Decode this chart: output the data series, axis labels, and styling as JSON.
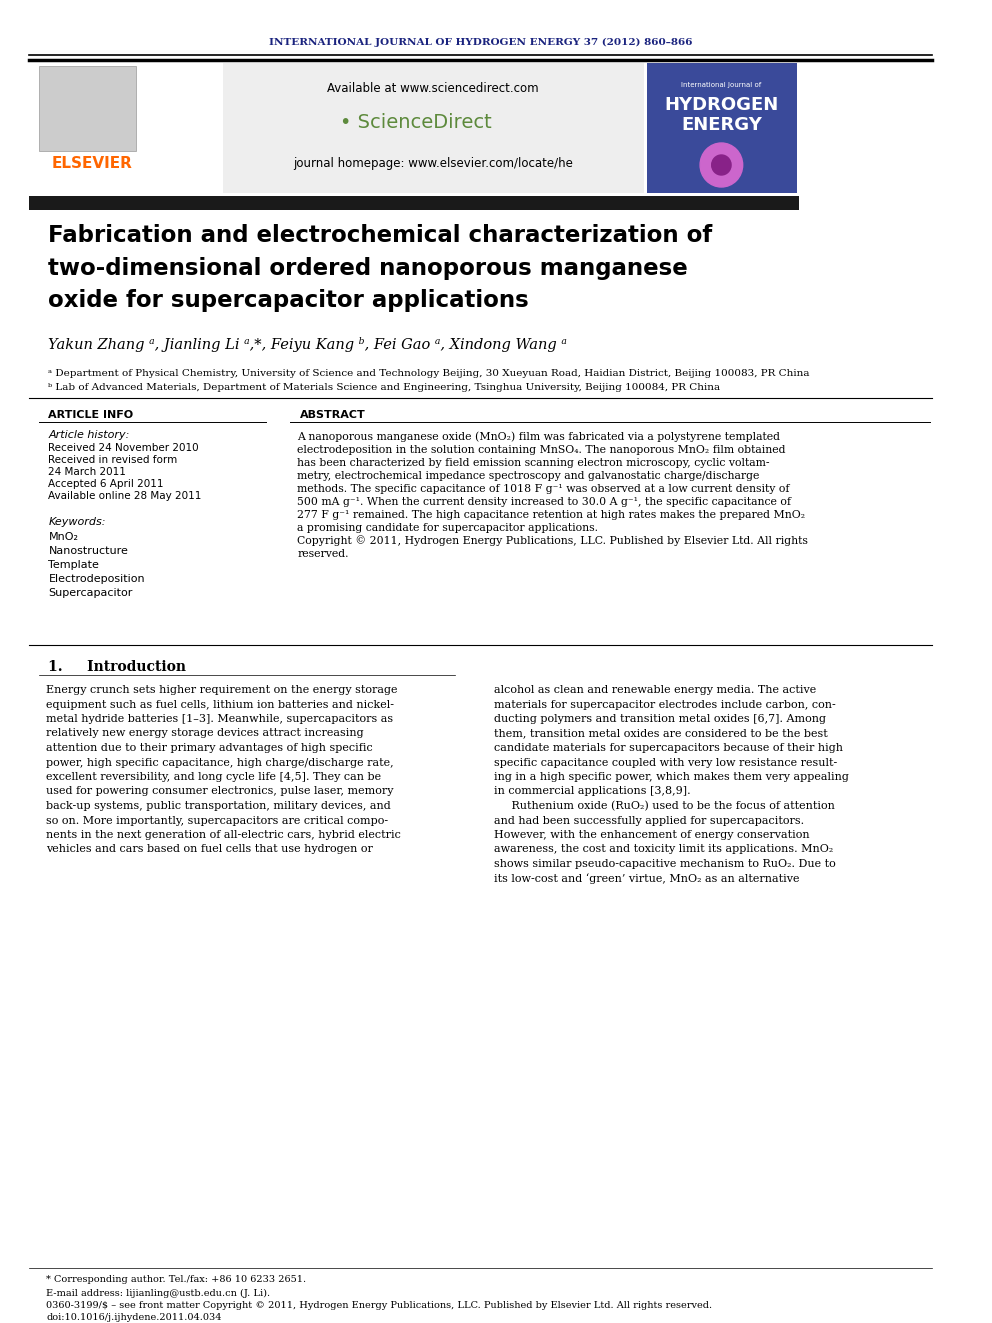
{
  "journal_header": "INTERNATIONAL JOURNAL OF HYDROGEN ENERGY 37 (2012) 860–866",
  "journal_header_color": "#1a237e",
  "elsevier_text": "ELSEVIER",
  "elsevier_color": "#ff6600",
  "available_text": "Available at www.sciencedirect.com",
  "journal_homepage": "journal homepage: www.elsevier.com/locate/he",
  "sciencedirect_text": "ScienceDirect",
  "title_line1": "Fabrication and electrochemical characterization of",
  "title_line2": "two-dimensional ordered nanoporous manganese",
  "title_line3": "oxide for supercapacitor applications",
  "authors": "Yakun Zhang ᵃ, Jianling Li ᵃ,*, Feiyu Kang ᵇ, Fei Gao ᵃ, Xindong Wang ᵃ",
  "affiliation_a": "ᵃ Department of Physical Chemistry, University of Science and Technology Beijing, 30 Xueyuan Road, Haidian District, Beijing 100083, PR China",
  "affiliation_b": "ᵇ Lab of Advanced Materials, Department of Materials Science and Engineering, Tsinghua University, Beijing 100084, PR China",
  "article_info_header": "ARTICLE INFO",
  "abstract_header": "ABSTRACT",
  "article_history": "Article history:",
  "received1": "Received 24 November 2010",
  "received2": "Received in revised form",
  "date2": "24 March 2011",
  "accepted": "Accepted 6 April 2011",
  "available_online": "Available online 28 May 2011",
  "keywords_header": "Keywords:",
  "keywords": [
    "MnO₂",
    "Nanostructure",
    "Template",
    "Electrodeposition",
    "Supercapacitor"
  ],
  "abstract_text": "A nanoporous manganese oxide (MnO₂) film was fabricated via a polystyrene templated electrodeposition in the solution containing MnSO₄. The nanoporous MnO₂ film obtained has been characterized by field emission scanning electron microscopy, cyclic voltammetry, electrochemical impedance spectroscopy and galvanostatic charge/discharge methods. The specific capacitance of 1018 F g⁻¹ was observed at a low current density of 500 mA g⁻¹. When the current density increased to 30.0 A g⁻¹, the specific capacitance of 277 F g⁻¹ remained. The high capacitance retention at high rates makes the prepared MnO₂ a promising candidate for supercapacitor applications.\nCopyright © 2011, Hydrogen Energy Publications, LLC. Published by Elsevier Ltd. All rights reserved.",
  "section_header": "1.     Introduction",
  "intro_text1": "Energy crunch sets higher requirement on the energy storage equipment such as fuel cells, lithium ion batteries and nickel-metal hydride batteries [1–3]. Meanwhile, supercapacitors as relatively new energy storage devices attract increasing attention due to their primary advantages of high specific power, high specific capacitance, high charge/discharge rate, excellent reversibility, and long cycle life [4,5]. They can be used for powering consumer electronics, pulse laser, memory back-up systems, public transportation, military devices, and so on. More importantly, supercapacitors are critical components in the next generation of all-electric cars, hybrid electric vehicles and cars based on fuel cells that use hydrogen or",
  "intro_text2": "alcohol as clean and renewable energy media. The active materials for supercapacitor electrodes include carbon, conducting polymers and transition metal oxides [6,7]. Among them, transition metal oxides are considered to be the best candidate materials for supercapacitors because of their high specific capacitance coupled with very low resistance resulting in a high specific power, which makes them very appealing in commercial applications [3,8,9].\n     Ruthenium oxide (RuO₂) used to be the focus of attention and had been successfully applied for supercapacitors. However, with the enhancement of energy conservation awareness, the cost and toxicity limit its applications. MnO₂ shows similar pseudo-capacitive mechanism to RuO₂. Due to its low-cost and ‘green’ virtue, MnO₂ as an alternative",
  "footnote_star": "* Corresponding author. Tel./fax: +86 10 6233 2651.",
  "footnote_email": "E-mail address: lijianling@ustb.edu.cn (J. Li).",
  "footnote_issn": "0360-3199/$ – see front matter Copyright © 2011, Hydrogen Energy Publications, LLC. Published by Elsevier Ltd. All rights reserved.",
  "footnote_doi": "doi:10.1016/j.ijhydene.2011.04.034",
  "background_color": "#ffffff",
  "text_color": "#000000",
  "header_bg": "#e8e8e8",
  "title_bar_color": "#1a1a1a",
  "divider_color": "#000000",
  "blue_color": "#1a237e",
  "green_color": "#4caf50",
  "orange_color": "#ff6600"
}
